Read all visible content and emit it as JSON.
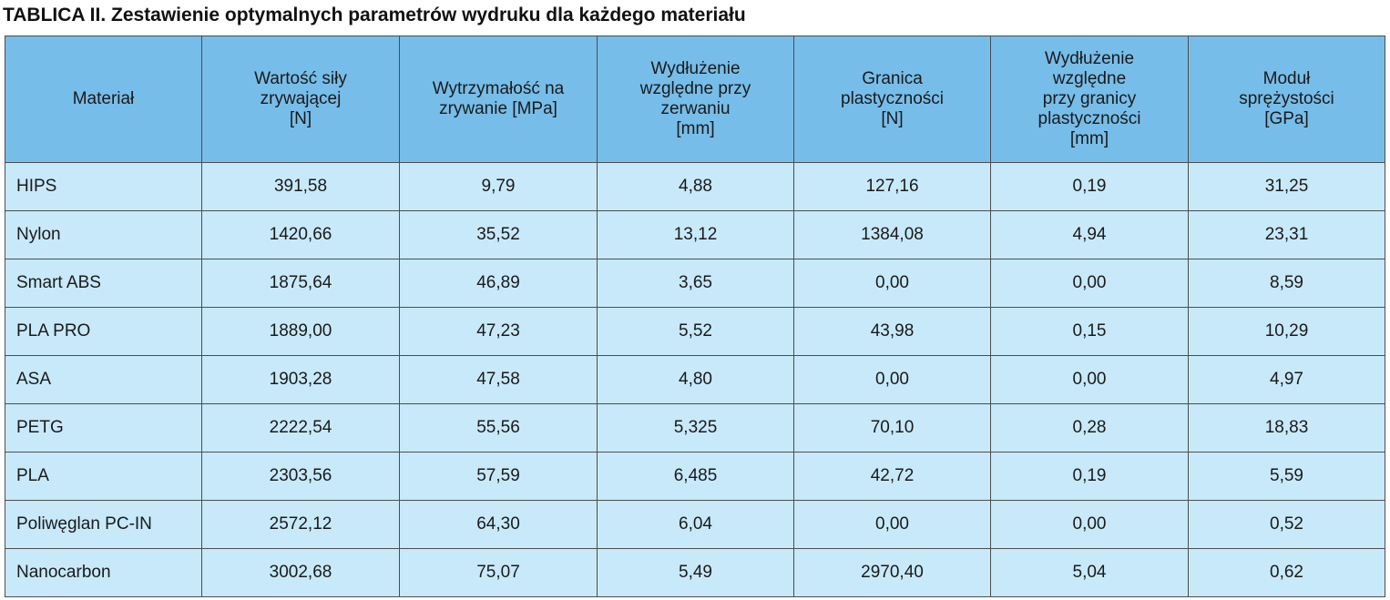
{
  "caption": "TABLICA II. Zestawienie optymalnych parametrów wydruku dla każdego materiału",
  "colors": {
    "header_bg": "#77bde9",
    "row_bg": "#c8e9fa",
    "border": "#4d4d4d"
  },
  "table": {
    "headers": [
      [
        "Materiał"
      ],
      [
        "Wartość siły",
        "zrywającej",
        "[N]"
      ],
      [
        "Wytrzymałość na",
        "zrywanie [MPa]"
      ],
      [
        "Wydłużenie",
        "względne przy",
        "zerwaniu",
        "[mm]"
      ],
      [
        "Granica",
        "plastyczności",
        "[N]"
      ],
      [
        "Wydłużenie",
        "względne",
        "przy granicy",
        "plastyczności",
        "[mm]"
      ],
      [
        "Moduł",
        "sprężystości",
        "[GPa]"
      ]
    ],
    "rows": [
      [
        "HIPS",
        "391,58",
        "9,79",
        "4,88",
        "127,16",
        "0,19",
        "31,25"
      ],
      [
        "Nylon",
        "1420,66",
        "35,52",
        "13,12",
        "1384,08",
        "4,94",
        "23,31"
      ],
      [
        "Smart ABS",
        "1875,64",
        "46,89",
        "3,65",
        "0,00",
        "0,00",
        "8,59"
      ],
      [
        "PLA PRO",
        "1889,00",
        "47,23",
        "5,52",
        "43,98",
        "0,15",
        "10,29"
      ],
      [
        "ASA",
        "1903,28",
        "47,58",
        "4,80",
        "0,00",
        "0,00",
        "4,97"
      ],
      [
        "PETG",
        "2222,54",
        "55,56",
        "5,325",
        "70,10",
        "0,28",
        "18,83"
      ],
      [
        "PLA",
        "2303,56",
        "57,59",
        "6,485",
        "42,72",
        "0,19",
        "5,59"
      ],
      [
        "Poliwęglan PC-IN",
        "2572,12",
        "64,30",
        "6,04",
        "0,00",
        "0,00",
        "0,52"
      ],
      [
        "Nanocarbon",
        "3002,68",
        "75,07",
        "5,49",
        "2970,40",
        "5,04",
        "0,62"
      ]
    ]
  }
}
